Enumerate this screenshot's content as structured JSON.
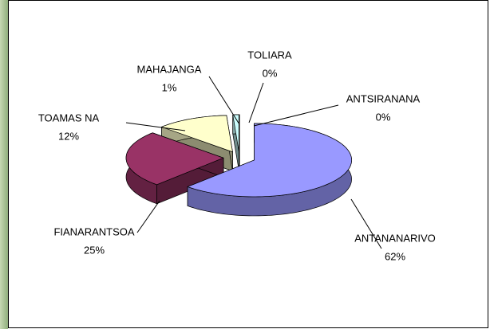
{
  "chart_data": {
    "type": "pie",
    "categories": [
      "ANTANANARIVO",
      "FIANARANTSOA",
      "TOAMAS NA",
      "MAHAJANGA",
      "TOLIARA",
      "ANTSIRANANA"
    ],
    "values": [
      62,
      25,
      12,
      1,
      0,
      0
    ],
    "value_labels": [
      "62%",
      "25%",
      "12%",
      "1%",
      "0%",
      "0%"
    ],
    "colors": [
      "#9999ff",
      "#993366",
      "#ffffcc",
      "#ccffff",
      "#660066",
      "#1a1a1a"
    ]
  }
}
